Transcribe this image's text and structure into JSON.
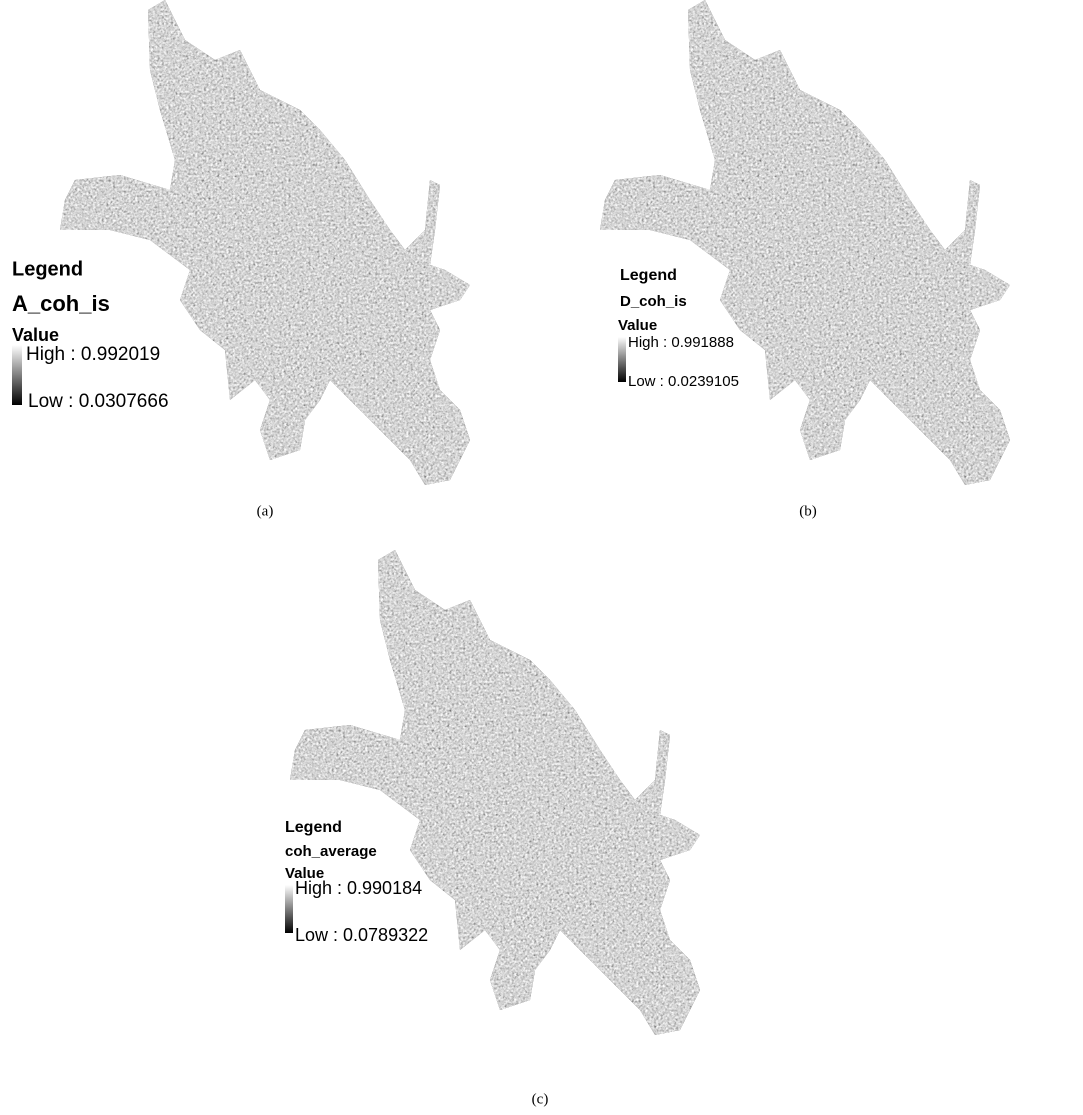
{
  "panels": [
    {
      "legend": "Legend",
      "layer": "A_coh_is",
      "field": "Value",
      "high": "High : 0.992019",
      "low": "Low : 0.0307666",
      "caption": "(a)"
    },
    {
      "legend": "Legend",
      "layer": "D_coh_is",
      "field": "Value",
      "high": "High : 0.991888",
      "low": "Low : 0.0239105",
      "caption": "(b)"
    },
    {
      "legend": "Legend",
      "layer": "coh_average",
      "field": "Value",
      "high": "High : 0.990184",
      "low": "Low : 0.0789322",
      "caption": "(c)"
    }
  ]
}
